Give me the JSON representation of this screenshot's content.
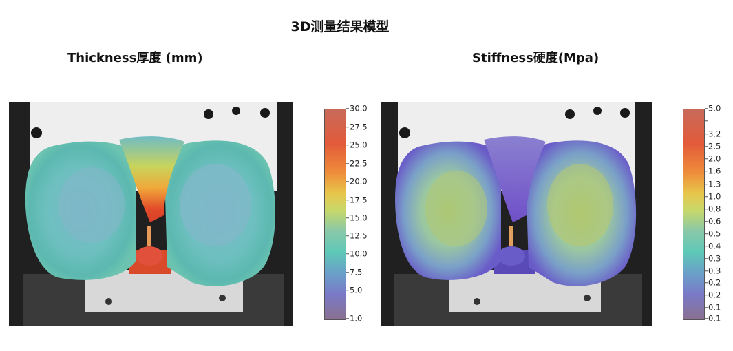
{
  "main_title": "3D测量结果模型",
  "panels": [
    {
      "title": "Thickness厚度 (mm)",
      "ticks": [
        "30.0",
        "27.5",
        "25.0",
        "22.5",
        "20.0",
        "17.5",
        "15.0",
        "12.5",
        "10.0",
        "7.5",
        "5.0",
        "1.0"
      ]
    },
    {
      "title": "Stiffness硬度(Mpa)",
      "ticks": [
        "5.0",
        "",
        "3.2",
        "2.5",
        "2.0",
        "1.6",
        "1.3",
        "1.0",
        "0.8",
        "0.6",
        "0.5",
        "0.4",
        "0.3",
        "0.3",
        "0.2",
        "0.2",
        "0.1",
        "0.1"
      ]
    }
  ]
}
